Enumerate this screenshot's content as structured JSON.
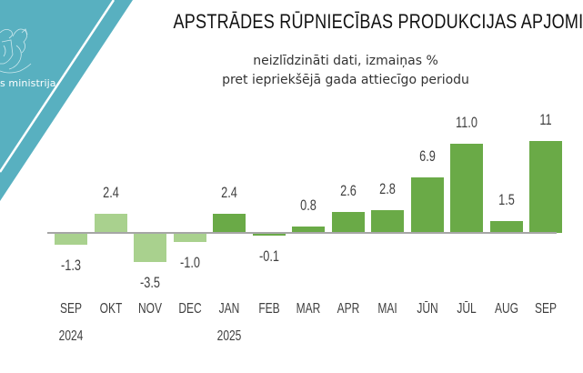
{
  "header": {
    "logo_text": "s ministrija",
    "title": "APSTRĀDES RŪPNIECĪBAS PRODUKCIJAS APJOMI",
    "subtitle_line1": "neizlīdzināti dati, izmaiņas %",
    "subtitle_line2": "pret iepriekšējā gada attiecīgo periodu"
  },
  "colors": {
    "teal": "#58b0c0",
    "bar_2024": "#a9d18e",
    "bar_2025": "#6aaa47",
    "axis": "#a6a6a6",
    "label": "#404040"
  },
  "chart_data": {
    "type": "bar",
    "title": "APSTRĀDES RŪPNIECĪBAS PRODUKCIJAS APJOMI",
    "subtitle": "neizlīdzināti dati, izmaiņas % pret iepriekšējā gada attiecīgo periodu",
    "xlabel": "",
    "ylabel": "",
    "categories": [
      "SEP 2024",
      "OKT",
      "NOV",
      "DEC",
      "JAN 2025",
      "FEB",
      "MAR",
      "APR",
      "MAI",
      "JŪN",
      "JŪL",
      "AUG",
      "SEP"
    ],
    "values": [
      -1.3,
      2.4,
      -3.5,
      -1.0,
      2.4,
      -0.1,
      0.8,
      2.6,
      2.8,
      6.9,
      11.0,
      1.5,
      11.4
    ],
    "value_labels": [
      "-1.3",
      "2.4",
      "-3.5",
      "-1.0",
      "2.4",
      "-0.1",
      "0.8",
      "2.6",
      "2.8",
      "6.9",
      "11.0",
      "1.5",
      "11"
    ],
    "series_color_by_year": {
      "2024": "#a9d18e",
      "2025": "#6aaa47"
    },
    "grid": false,
    "legend": "none"
  },
  "bars": [
    {
      "month": "SEP",
      "year": "2024",
      "label": "-1.3",
      "value": -1.3,
      "color": "#a9d18e"
    },
    {
      "month": "OKT",
      "year": "",
      "label": "2.4",
      "value": 2.4,
      "color": "#a9d18e"
    },
    {
      "month": "NOV",
      "year": "",
      "label": "-3.5",
      "value": -3.5,
      "color": "#a9d18e"
    },
    {
      "month": "DEC",
      "year": "",
      "label": "-1.0",
      "value": -1.0,
      "color": "#a9d18e"
    },
    {
      "month": "JAN",
      "year": "2025",
      "label": "2.4",
      "value": 2.4,
      "color": "#6aaa47"
    },
    {
      "month": "FEB",
      "year": "",
      "label": "-0.1",
      "value": -0.1,
      "color": "#6aaa47"
    },
    {
      "month": "MAR",
      "year": "",
      "label": "0.8",
      "value": 0.8,
      "color": "#6aaa47"
    },
    {
      "month": "APR",
      "year": "",
      "label": "2.6",
      "value": 2.6,
      "color": "#6aaa47"
    },
    {
      "month": "MAI",
      "year": "",
      "label": "2.8",
      "value": 2.8,
      "color": "#6aaa47"
    },
    {
      "month": "JŪN",
      "year": "",
      "label": "6.9",
      "value": 6.9,
      "color": "#6aaa47"
    },
    {
      "month": "JŪL",
      "year": "",
      "label": "11.0",
      "value": 11.0,
      "color": "#6aaa47"
    },
    {
      "month": "AUG",
      "year": "",
      "label": "1.5",
      "value": 1.5,
      "color": "#6aaa47"
    },
    {
      "month": "SEP",
      "year": "",
      "label": "11",
      "value": 11.4,
      "color": "#6aaa47"
    }
  ]
}
